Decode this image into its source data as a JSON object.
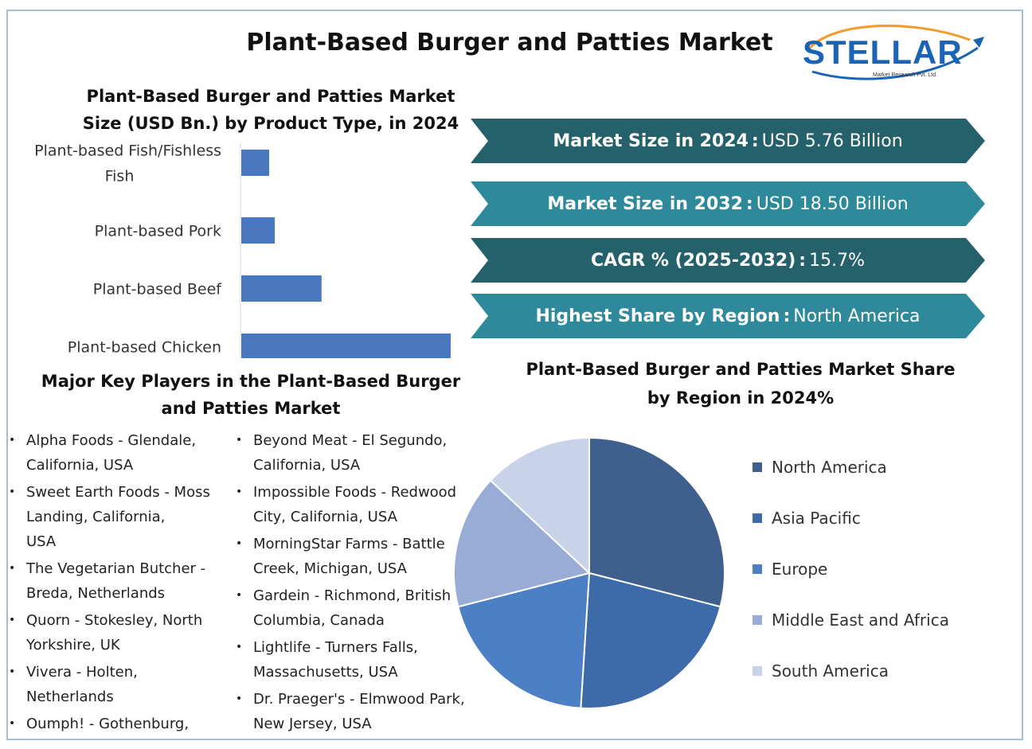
{
  "title": "Plant-Based Burger and Patties Market",
  "logo": {
    "name": "STELLAR",
    "subtitle": "Market Research Pvt. Ltd.",
    "name_color": "#1b63b5",
    "arc_color": "#f29a2e"
  },
  "bar_section": {
    "title_line1": "Plant-Based Burger and Patties Market",
    "title_line2": "Size (USD Bn.) by Product Type, in 2024"
  },
  "banners": [
    {
      "label": "Market Size in 2024",
      "sep": ":",
      "value": "USD 5.76 Billion",
      "color": "#25616b"
    },
    {
      "label": "Market Size in 2032",
      "sep": ":",
      "value": "USD 18.50 Billion",
      "color": "#2e8a9a"
    },
    {
      "label": "CAGR % (2025-2032)",
      "sep": ":",
      "value": "15.7%",
      "color": "#25616b"
    },
    {
      "label": "Highest Share by Region",
      "sep": ":",
      "value": "North America",
      "color": "#2e8a9a"
    }
  ],
  "players": {
    "title_line1": "Major Key Players in the Plant-Based Burger",
    "title_line2": "and Patties Market",
    "bullet": "•",
    "col1": [
      "Alpha Foods - Glendale,\n   California, USA",
      "Sweet Earth Foods - Moss\n   Landing, California,\n   USA",
      "The Vegetarian Butcher -\n   Breda, Netherlands",
      "Quorn - Stokesley, North\n   Yorkshire, UK",
      "Vivera - Holten,\n   Netherlands",
      "Oumph! - Gothenburg,"
    ],
    "col2": [
      "Beyond Meat - El Segundo,\n   California, USA",
      "Impossible Foods - Redwood\n   City, California, USA",
      "MorningStar Farms - Battle\n   Creek, Michigan, USA",
      "Gardein - Richmond, British\n   Columbia, Canada",
      "Lightlife - Turners Falls,\n   Massachusetts, USA",
      "Dr. Praeger's - Elmwood Park,\n   New Jersey, USA"
    ]
  },
  "pie_section": {
    "title_line1": "Plant-Based Burger and Patties Market Share",
    "title_line2": "by Region in 2024%"
  },
  "chart_data": [
    {
      "type": "bar",
      "orientation": "horizontal",
      "categories": [
        "Plant-based Fish/Fishless Fish",
        "Plant-based Pork",
        "Plant-based Beef",
        "Plant-based Chicken"
      ],
      "category_lines": [
        [
          "Plant-based Fish/Fishless",
          "Fish"
        ],
        [
          "Plant-based Pork"
        ],
        [
          "Plant-based Beef"
        ],
        [
          "Plant-based Chicken"
        ]
      ],
      "values": [
        0.4,
        0.48,
        1.15,
        3.0
      ],
      "value_axis": "hidden",
      "color": "#4a78c0"
    },
    {
      "type": "pie",
      "categories": [
        "North America",
        "Asia Pacific",
        "Europe",
        "Middle East and Africa",
        "South America"
      ],
      "values": [
        29,
        22,
        20,
        16,
        13
      ],
      "colors": [
        "#3f5f8e",
        "#3d6aa8",
        "#4d7fc4",
        "#98acd6",
        "#c8d3ea"
      ],
      "start": "12 o'clock",
      "direction": "clockwise",
      "legend_position": "right"
    }
  ]
}
